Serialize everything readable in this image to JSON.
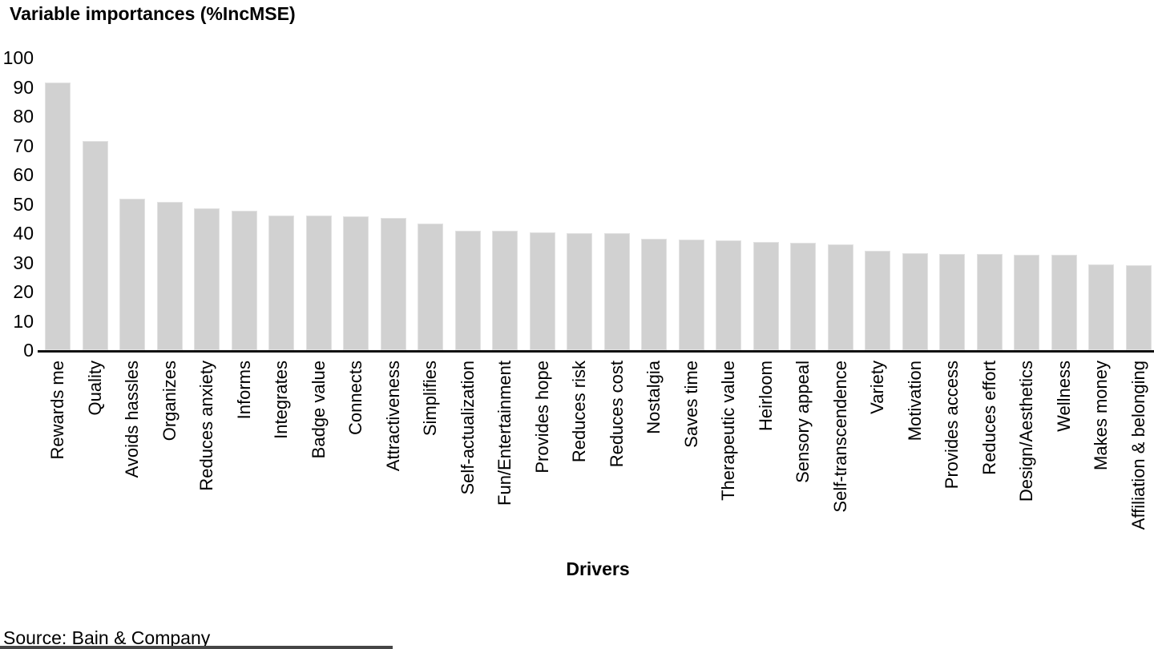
{
  "colors": {
    "bar_fill": "#d1d1d1",
    "bar_edge": "#e2e2e2",
    "axis": "#111111",
    "text": "#000000",
    "bottom_strip": "#464646",
    "background": "#ffffff"
  },
  "chart_data": {
    "type": "bar",
    "title": "Variable importances (%IncMSE)",
    "xlabel": "Drivers",
    "ylabel": "",
    "ylim": [
      0,
      100
    ],
    "yticks": [
      0,
      10,
      20,
      30,
      40,
      50,
      60,
      70,
      80,
      90,
      100
    ],
    "grid": false,
    "legend_position": "none",
    "categories": [
      "Rewards me",
      "Quality",
      "Avoids hassles",
      "Organizes",
      "Reduces anxiety",
      "Informs",
      "Integrates",
      "Badge value",
      "Connects",
      "Attractiveness",
      "Simplifies",
      "Self-actualization",
      "Fun/Entertainment",
      "Provides hope",
      "Reduces risk",
      "Reduces cost",
      "Nostalgia",
      "Saves time",
      "Therapeutic value",
      "Heirloom",
      "Sensory appeal",
      "Self-transcendence",
      "Variety",
      "Motivation",
      "Provides access",
      "Reduces effort",
      "Design/Aesthetics",
      "Wellness",
      "Makes money",
      "Affiliation & belonging"
    ],
    "values": [
      91.4,
      71.5,
      51.9,
      50.6,
      48.5,
      47.7,
      46.0,
      45.9,
      45.7,
      45.1,
      43.3,
      40.9,
      40.7,
      40.3,
      40.1,
      39.9,
      38.0,
      37.8,
      37.5,
      37.0,
      36.6,
      36.3,
      34.0,
      33.2,
      33.0,
      32.8,
      32.7,
      32.5,
      29.3,
      29.0
    ]
  },
  "source": "Source: Bain & Company"
}
